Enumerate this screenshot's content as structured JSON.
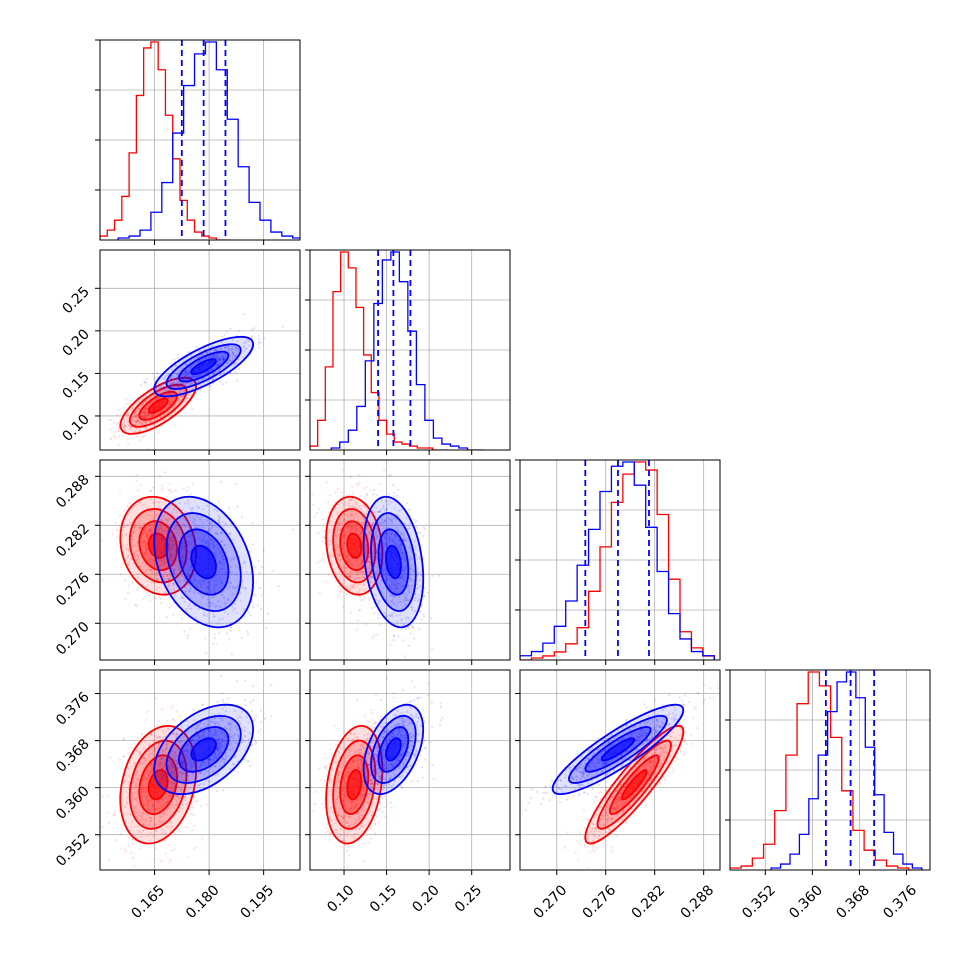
{
  "chart_data": {
    "type": "corner",
    "grid": true,
    "parameters": [
      {
        "range": [
          0.15,
          0.205
        ],
        "ticks": [
          0.165,
          0.18,
          0.195
        ],
        "tick_labels": [
          "0.165",
          "0.180",
          "0.195"
        ]
      },
      {
        "range": [
          0.06,
          0.295
        ],
        "ticks": [
          0.1,
          0.15,
          0.2,
          0.25
        ],
        "tick_labels": [
          "0.10",
          "0.15",
          "0.20",
          "0.25"
        ]
      },
      {
        "range": [
          0.2655,
          0.29
        ],
        "ticks": [
          0.27,
          0.276,
          0.282,
          0.288
        ],
        "tick_labels": [
          "0.270",
          "0.276",
          "0.282",
          "0.288"
        ]
      },
      {
        "range": [
          0.346,
          0.38
        ],
        "ticks": [
          0.352,
          0.36,
          0.368,
          0.376
        ],
        "tick_labels": [
          "0.352",
          "0.360",
          "0.368",
          "0.376"
        ]
      }
    ],
    "series": [
      {
        "color": "#ff0000",
        "mean": [
          0.166,
          0.112,
          0.2795,
          0.3605
        ],
        "sd": [
          0.0052,
          0.0165,
          0.003,
          0.005
        ],
        "corr": [
          [
            0.0,
            0.7,
            -0.15,
            0.25
          ],
          [
            0.7,
            0.0,
            -0.15,
            0.25
          ],
          [
            -0.15,
            -0.15,
            0.0,
            0.9
          ],
          [
            0.25,
            0.25,
            0.9,
            0.0
          ]
        ],
        "histograms": [
          {
            "bins": [
              0.15,
              0.152,
              0.154,
              0.156,
              0.158,
              0.16,
              0.162,
              0.164,
              0.166,
              0.168,
              0.17,
              0.172,
              0.174,
              0.176,
              0.178,
              0.18,
              0.182,
              0.184,
              0.186
            ],
            "counts": [
              0.02,
              0.05,
              0.1,
              0.22,
              0.44,
              0.73,
              0.97,
              1.0,
              0.86,
              0.63,
              0.41,
              0.2,
              0.1,
              0.04,
              0.02,
              0.01,
              0.0,
              0.0
            ]
          },
          {
            "bins": [
              0.06,
              0.069,
              0.078,
              0.087,
              0.096,
              0.105,
              0.114,
              0.123,
              0.132,
              0.141,
              0.15,
              0.159,
              0.168,
              0.177,
              0.186,
              0.195,
              0.204,
              0.213,
              0.222
            ],
            "counts": [
              0.02,
              0.15,
              0.42,
              0.8,
              1.0,
              0.92,
              0.72,
              0.48,
              0.29,
              0.15,
              0.08,
              0.04,
              0.03,
              0.02,
              0.01,
              0.01,
              0.0,
              0.0
            ]
          },
          {
            "bins": [
              0.2655,
              0.2669,
              0.2683,
              0.2697,
              0.2711,
              0.2725,
              0.2739,
              0.2753,
              0.2767,
              0.2781,
              0.2795,
              0.2809,
              0.2823,
              0.2837,
              0.2851,
              0.2865,
              0.2879,
              0.2893
            ],
            "counts": [
              0.0,
              0.01,
              0.02,
              0.04,
              0.08,
              0.16,
              0.34,
              0.56,
              0.78,
              0.92,
              0.98,
              0.94,
              0.72,
              0.4,
              0.14,
              0.06,
              0.02
            ]
          },
          {
            "bins": [
              0.346,
              0.3479,
              0.3498,
              0.3517,
              0.3536,
              0.3555,
              0.3574,
              0.3593,
              0.3612,
              0.3631,
              0.365,
              0.3669,
              0.3688,
              0.3707,
              0.3726,
              0.3745,
              0.3764,
              0.3783
            ],
            "counts": [
              0.01,
              0.02,
              0.06,
              0.13,
              0.3,
              0.58,
              0.84,
              1.0,
              0.93,
              0.67,
              0.4,
              0.2,
              0.1,
              0.05,
              0.02,
              0.01,
              0.0
            ]
          }
        ]
      },
      {
        "color": "#0000ff",
        "mean": [
          0.1785,
          0.158,
          0.2775,
          0.3665
        ],
        "sd": [
          0.0068,
          0.0175,
          0.004,
          0.0038
        ],
        "corr": [
          [
            0.0,
            0.75,
            -0.3,
            0.45
          ],
          [
            0.75,
            0.0,
            -0.25,
            0.45
          ],
          [
            -0.3,
            -0.25,
            0.0,
            0.88
          ],
          [
            0.45,
            0.45,
            0.88,
            0.0
          ]
        ],
        "quantiles": [
          [
            0.1725,
            0.1785,
            0.1845
          ],
          [
            0.14,
            0.158,
            0.178
          ],
          [
            0.2735,
            0.2775,
            0.2813
          ],
          [
            0.3623,
            0.3665,
            0.3705
          ]
        ],
        "histograms": [
          {
            "bins": [
              0.155,
              0.158,
              0.161,
              0.164,
              0.167,
              0.17,
              0.173,
              0.176,
              0.179,
              0.182,
              0.185,
              0.188,
              0.191,
              0.194,
              0.197,
              0.2,
              0.203,
              0.206
            ],
            "counts": [
              0.01,
              0.02,
              0.05,
              0.14,
              0.29,
              0.54,
              0.78,
              0.94,
              1.0,
              0.86,
              0.61,
              0.37,
              0.19,
              0.1,
              0.04,
              0.02,
              0.01
            ]
          },
          {
            "bins": [
              0.085,
              0.095,
              0.105,
              0.115,
              0.125,
              0.135,
              0.145,
              0.155,
              0.165,
              0.175,
              0.185,
              0.195,
              0.205,
              0.215,
              0.225,
              0.235,
              0.245,
              0.255,
              0.265
            ],
            "counts": [
              0.01,
              0.04,
              0.1,
              0.22,
              0.45,
              0.74,
              0.96,
              1.0,
              0.85,
              0.6,
              0.33,
              0.15,
              0.06,
              0.03,
              0.02,
              0.01,
              0.0,
              0.0
            ]
          },
          {
            "bins": [
              0.2655,
              0.2669,
              0.2683,
              0.2697,
              0.2711,
              0.2725,
              0.2739,
              0.2753,
              0.2767,
              0.2781,
              0.2795,
              0.2809,
              0.2823,
              0.2837,
              0.2851,
              0.2865,
              0.2879,
              0.2893
            ],
            "counts": [
              0.02,
              0.04,
              0.08,
              0.16,
              0.28,
              0.45,
              0.62,
              0.8,
              0.92,
              0.94,
              0.83,
              0.63,
              0.42,
              0.22,
              0.1,
              0.04,
              0.02
            ]
          },
          {
            "bins": [
              0.353,
              0.3546,
              0.3562,
              0.3578,
              0.3594,
              0.361,
              0.3626,
              0.3642,
              0.3658,
              0.3674,
              0.369,
              0.3706,
              0.3722,
              0.3738,
              0.3754,
              0.377,
              0.3786
            ],
            "counts": [
              0.01,
              0.03,
              0.08,
              0.18,
              0.36,
              0.58,
              0.8,
              0.95,
              1.0,
              0.87,
              0.62,
              0.38,
              0.19,
              0.08,
              0.03,
              0.01
            ]
          }
        ]
      }
    ]
  }
}
